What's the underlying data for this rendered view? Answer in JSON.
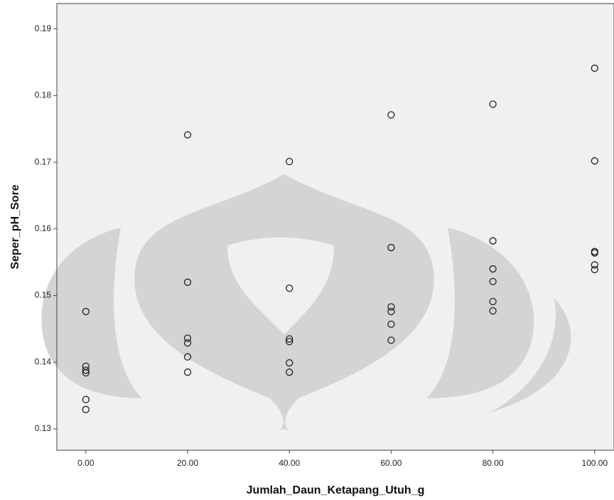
{
  "chart_data": {
    "type": "scatter",
    "x_label": "Jumlah_Daun_Ketapang_Utuh_g",
    "y_label": "Seper_pH_Sore",
    "x": [
      0,
      0,
      0,
      0,
      0,
      0,
      20,
      20,
      20,
      20,
      20,
      20,
      40,
      40,
      40,
      40,
      40,
      40,
      60,
      60,
      60,
      60,
      60,
      60,
      80,
      80,
      80,
      80,
      80,
      80,
      100,
      100,
      100,
      100,
      100,
      100
    ],
    "y": [
      0.1476,
      0.1394,
      0.1388,
      0.1384,
      0.1344,
      0.1329,
      0.1741,
      0.152,
      0.1436,
      0.1429,
      0.1408,
      0.1385,
      0.1701,
      0.1511,
      0.1435,
      0.1431,
      0.1399,
      0.1385,
      0.1771,
      0.1572,
      0.1483,
      0.1476,
      0.1457,
      0.1433,
      0.1787,
      0.1582,
      0.154,
      0.1521,
      0.1491,
      0.1477,
      0.1841,
      0.1702,
      0.1566,
      0.1564,
      0.1546,
      0.1539
    ],
    "color": "#222222",
    "xlim": [
      -5.7,
      103.8
    ],
    "ylim": [
      0.1268,
      0.1938
    ],
    "xticks": [
      {
        "value": 0,
        "label": "0.00"
      },
      {
        "value": 20,
        "label": "20.00"
      },
      {
        "value": 40,
        "label": "40.00"
      },
      {
        "value": 60,
        "label": "60.00"
      },
      {
        "value": 80,
        "label": "80.00"
      },
      {
        "value": 100,
        "label": "100.00"
      }
    ],
    "yticks": [
      0.13,
      0.14,
      0.15,
      0.16,
      0.17,
      0.18,
      0.19
    ]
  }
}
